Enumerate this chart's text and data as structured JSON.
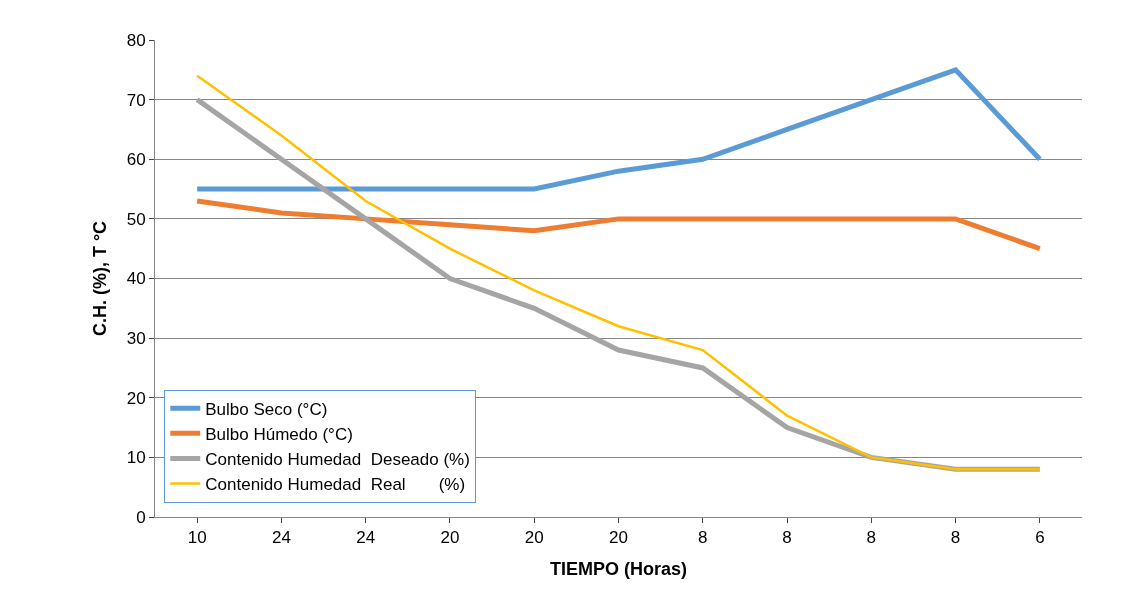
{
  "chart_data": {
    "type": "line",
    "xlabel": "TIEMPO (Horas)",
    "ylabel": "C.H. (%), T °C",
    "categories": [
      "10",
      "24",
      "24",
      "20",
      "20",
      "20",
      "8",
      "8",
      "8",
      "8",
      "6"
    ],
    "series": [
      {
        "name": "Bulbo Seco (°C)",
        "color": "#5b9bd5",
        "values": [
          55,
          55,
          55,
          55,
          55,
          58,
          60,
          65,
          70,
          75,
          60
        ]
      },
      {
        "name": "Bulbo Húmedo (°C)",
        "color": "#ed7d31",
        "values": [
          53,
          51,
          50,
          49,
          48,
          50,
          50,
          50,
          50,
          50,
          45
        ]
      },
      {
        "name": "Contenido Humedad  Deseado (%)",
        "color": "#a5a5a5",
        "values": [
          70,
          60,
          50,
          40,
          35,
          28,
          25,
          15,
          10,
          8,
          8
        ]
      },
      {
        "name": "Contenido Humedad  Real       (%)",
        "color": "#ffc000",
        "values": [
          74,
          64,
          53,
          45,
          38,
          32,
          28,
          17,
          10,
          8,
          8
        ]
      }
    ],
    "ylim": [
      0,
      80
    ],
    "yticks": [
      0,
      10,
      20,
      30,
      40,
      50,
      60,
      70,
      80
    ],
    "grid": "y",
    "legend": "bottom left",
    "marker": "none",
    "line_style": "solid"
  }
}
